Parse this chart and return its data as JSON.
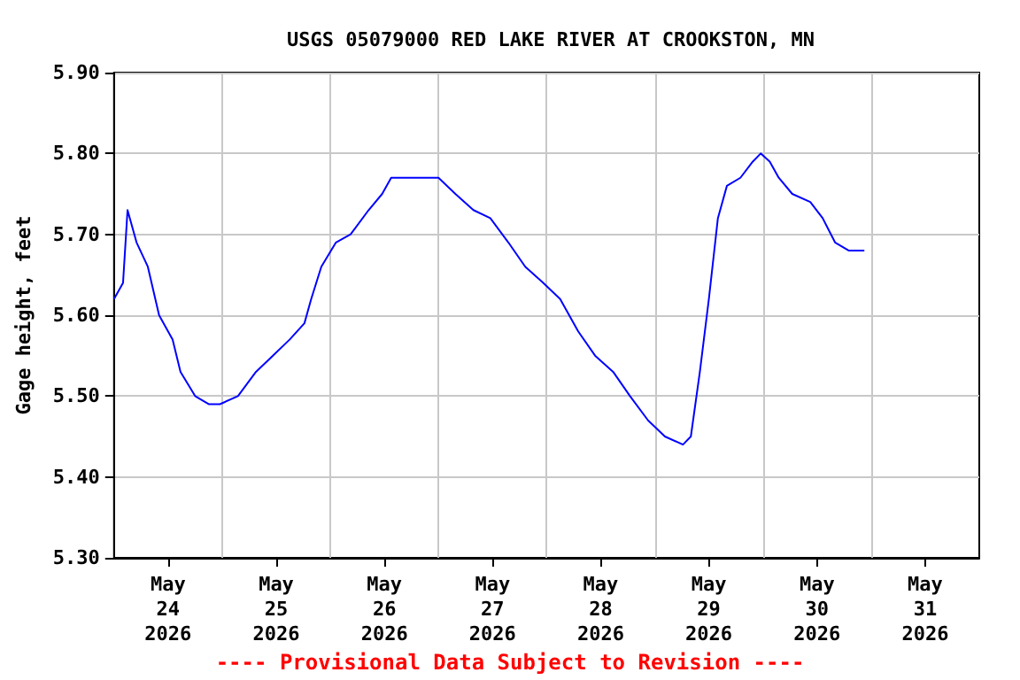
{
  "chart_data": {
    "type": "line",
    "title": "USGS 05079000 RED LAKE RIVER AT CROOKSTON, MN",
    "ylabel": "Gage height, feet",
    "annotations": [
      "---- Provisional Data Subject to Revision ----"
    ],
    "xlim": [
      "2026-05-24T00:00",
      "2026-06-01T00:00"
    ],
    "xticks": [
      {
        "value": "2026-05-24T12:00",
        "label": "May\n24\n2026"
      },
      {
        "value": "2026-05-25T12:00",
        "label": "May\n25\n2026"
      },
      {
        "value": "2026-05-26T12:00",
        "label": "May\n26\n2026"
      },
      {
        "value": "2026-05-27T12:00",
        "label": "May\n27\n2026"
      },
      {
        "value": "2026-05-28T12:00",
        "label": "May\n28\n2026"
      },
      {
        "value": "2026-05-29T12:00",
        "label": "May\n29\n2026"
      },
      {
        "value": "2026-05-30T12:00",
        "label": "May\n30\n2026"
      },
      {
        "value": "2026-05-31T12:00",
        "label": "May\n31\n2026"
      },
      {
        "value": "2026-05-25T00:00",
        "label": null
      },
      {
        "value": "2026-05-26T00:00",
        "label": null
      },
      {
        "value": "2026-05-27T00:00",
        "label": null
      },
      {
        "value": "2026-05-28T00:00",
        "label": null
      },
      {
        "value": "2026-05-29T00:00",
        "label": null
      },
      {
        "value": "2026-05-30T00:00",
        "label": null
      },
      {
        "value": "2026-05-31T00:00",
        "label": null
      }
    ],
    "ylim": [
      5.3,
      5.9
    ],
    "yticks": [
      {
        "value": 5.3,
        "label": "5.30"
      },
      {
        "value": 5.4,
        "label": "5.40"
      },
      {
        "value": 5.5,
        "label": "5.50"
      },
      {
        "value": 5.6,
        "label": "5.60"
      },
      {
        "value": 5.7,
        "label": "5.70"
      },
      {
        "value": 5.8,
        "label": "5.80"
      },
      {
        "value": 5.9,
        "label": "5.90"
      }
    ],
    "grid": true,
    "series": [
      {
        "color": "#0000ff",
        "x": [
          "2026-05-24T00:00",
          "2026-05-24T02:00",
          "2026-05-24T03:00",
          "2026-05-24T05:00",
          "2026-05-24T07:30",
          "2026-05-24T10:00",
          "2026-05-24T13:00",
          "2026-05-24T14:45",
          "2026-05-24T18:00",
          "2026-05-24T21:00",
          "2026-05-24T23:30",
          "2026-05-25T03:30",
          "2026-05-25T07:30",
          "2026-05-25T11:15",
          "2026-05-25T15:00",
          "2026-05-25T18:15",
          "2026-05-25T19:45",
          "2026-05-25T22:00",
          "2026-05-26T01:15",
          "2026-05-26T04:30",
          "2026-05-26T08:30",
          "2026-05-26T11:30",
          "2026-05-26T13:30",
          "2026-05-26T18:15",
          "2026-05-27T00:00",
          "2026-05-27T03:45",
          "2026-05-27T07:45",
          "2026-05-27T11:30",
          "2026-05-27T15:30",
          "2026-05-27T19:15",
          "2026-05-27T23:15",
          "2026-05-28T03:00",
          "2026-05-28T07:00",
          "2026-05-28T10:45",
          "2026-05-28T14:45",
          "2026-05-28T18:30",
          "2026-05-28T22:30",
          "2026-05-29T02:15",
          "2026-05-29T06:15",
          "2026-05-29T08:00",
          "2026-05-29T10:00",
          "2026-05-29T12:00",
          "2026-05-29T14:00",
          "2026-05-29T16:00",
          "2026-05-29T19:00",
          "2026-05-29T21:45",
          "2026-05-29T23:30",
          "2026-05-30T01:30",
          "2026-05-30T03:30",
          "2026-05-30T06:30",
          "2026-05-30T10:30",
          "2026-05-30T13:15",
          "2026-05-30T16:00",
          "2026-05-30T19:00",
          "2026-05-30T22:30"
        ],
        "values": [
          5.62,
          5.64,
          5.73,
          5.69,
          5.66,
          5.6,
          5.57,
          5.53,
          5.5,
          5.49,
          5.49,
          5.5,
          5.53,
          5.55,
          5.57,
          5.59,
          5.62,
          5.66,
          5.69,
          5.7,
          5.73,
          5.75,
          5.77,
          5.77,
          5.77,
          5.75,
          5.73,
          5.72,
          5.69,
          5.66,
          5.64,
          5.62,
          5.58,
          5.55,
          5.53,
          5.5,
          5.47,
          5.45,
          5.44,
          5.45,
          5.53,
          5.62,
          5.72,
          5.76,
          5.77,
          5.79,
          5.8,
          5.79,
          5.77,
          5.75,
          5.74,
          5.72,
          5.69,
          5.68,
          5.68
        ]
      }
    ]
  }
}
